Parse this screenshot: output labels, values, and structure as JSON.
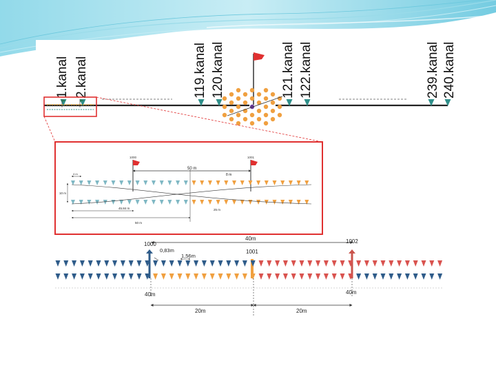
{
  "top_diagram": {
    "channel_labels": [
      "1.kanal",
      "2.kanal",
      "119.kanal",
      "120.kanal",
      "121.kanal",
      "122.kanal",
      "239.kanal",
      "240.kanal"
    ]
  },
  "inset_diagram": {
    "flag_left_label": "1000",
    "flag_right_label": "1001",
    "dim_50m": "50 m",
    "dim_8m": "8 m",
    "dim_4m": "4 m",
    "dim_10m": "10 m",
    "dim_4584m": "45.84 m",
    "dim_50m_bottom": "50 m",
    "dim_25m": "25 m"
  },
  "bottom_diagram": {
    "flag_1000": "1000",
    "flag_1001": "1001",
    "flag_1002": "1002",
    "spacing_083": "0,83m",
    "spacing_156": "1,56m",
    "span_40m_top": "40m",
    "span_40m_left": "40m",
    "span_40m_right": "40m",
    "span_20m_left": "20m",
    "span_20m_right": "20m"
  },
  "colors": {
    "blue": "#2f5c8a",
    "teal": "#2f8f8a",
    "orange": "#f0a040",
    "red": "#d9534f",
    "red_flag": "#e03030",
    "frame_red": "#e03030"
  }
}
